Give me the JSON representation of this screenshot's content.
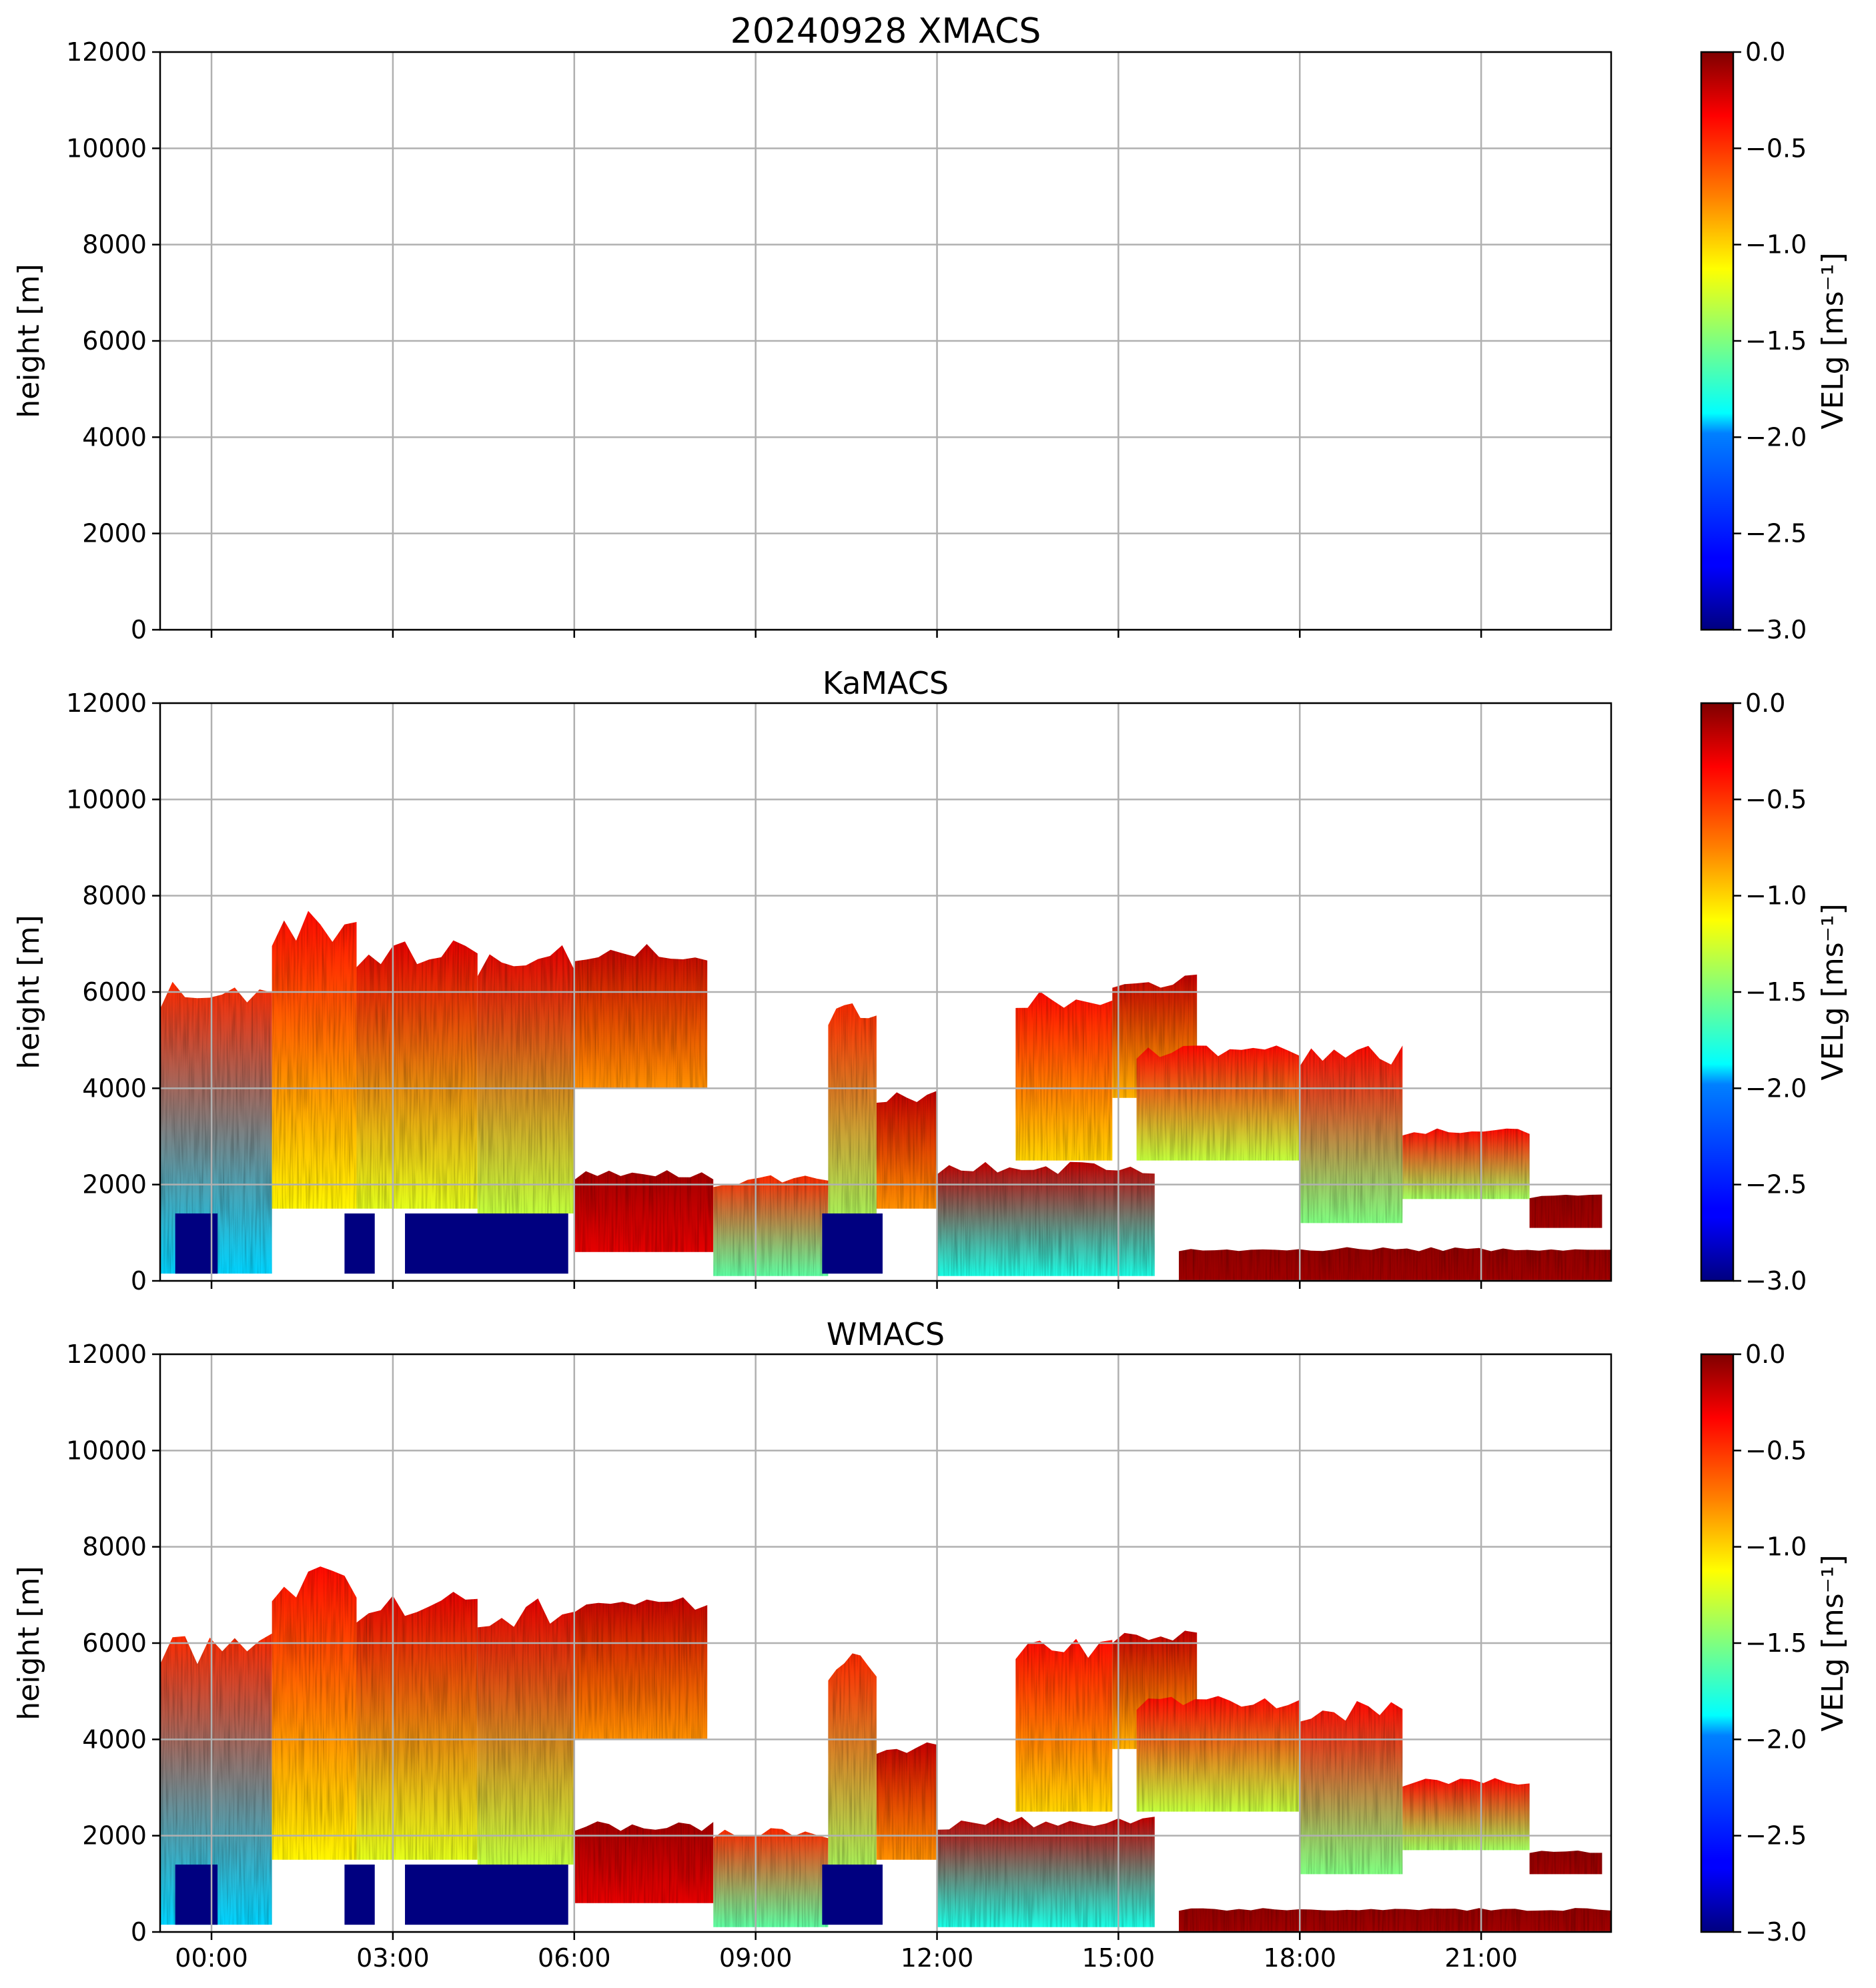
{
  "chart_data": [
    {
      "type": "heatmap",
      "title": "20240928 XMACS",
      "ylabel": "height [m]",
      "xlabel": "",
      "ylim": [
        0,
        12000
      ],
      "yticks": [
        0,
        2000,
        4000,
        6000,
        8000,
        10000,
        12000
      ],
      "xlim_hours": [
        -0.85,
        23.15
      ],
      "xticks_hours": [
        0,
        3,
        6,
        9,
        12,
        15,
        18,
        21
      ],
      "xtick_labels": [],
      "grid": true,
      "data": "none",
      "colorbar": {
        "label": "VELg [ms⁻¹]",
        "range": [
          -3.0,
          0.0
        ],
        "ticks": [
          0.0,
          -0.5,
          -1.0,
          -1.5,
          -2.0,
          -2.5,
          -3.0
        ],
        "tick_labels": [
          "0.0",
          "−0.5",
          "−1.0",
          "−1.5",
          "−2.0",
          "−2.5",
          "−3.0"
        ],
        "colormap": "jet"
      }
    },
    {
      "type": "heatmap",
      "title": "KaMACS",
      "ylabel": "height [m]",
      "xlabel": "",
      "ylim": [
        0,
        12000
      ],
      "yticks": [
        0,
        2000,
        4000,
        6000,
        8000,
        10000,
        12000
      ],
      "xlim_hours": [
        -0.85,
        23.15
      ],
      "xticks_hours": [
        0,
        3,
        6,
        9,
        12,
        15,
        18,
        21
      ],
      "xtick_labels": [],
      "grid": true,
      "cloud_regions": [
        {
          "t0": -0.85,
          "t1": 1.0,
          "base_m": 150,
          "top_m": 6400,
          "vel_top": -0.5,
          "vel_bottom": -2.0
        },
        {
          "t0": 1.0,
          "t1": 2.4,
          "base_m": 1500,
          "top_m": 7700,
          "vel_top": -0.4,
          "vel_bottom": -1.1
        },
        {
          "t0": 2.4,
          "t1": 4.4,
          "base_m": 1500,
          "top_m": 7200,
          "vel_top": -0.3,
          "vel_bottom": -1.2
        },
        {
          "t0": 4.4,
          "t1": 6.0,
          "base_m": 1400,
          "top_m": 7000,
          "vel_top": -0.3,
          "vel_bottom": -1.3
        },
        {
          "t0": 6.0,
          "t1": 8.2,
          "base_m": 4000,
          "top_m": 7000,
          "vel_top": -0.2,
          "vel_bottom": -0.8
        },
        {
          "t0": 6.0,
          "t1": 8.3,
          "base_m": 600,
          "top_m": 2300,
          "vel_top": -0.1,
          "vel_bottom": -0.3
        },
        {
          "t0": 8.3,
          "t1": 10.2,
          "base_m": 100,
          "top_m": 2200,
          "vel_top": -0.5,
          "vel_bottom": -1.6
        },
        {
          "t0": 10.2,
          "t1": 11.0,
          "base_m": 1000,
          "top_m": 5900,
          "vel_top": -0.5,
          "vel_bottom": -1.4
        },
        {
          "t0": 11.0,
          "t1": 12.0,
          "base_m": 1500,
          "top_m": 4000,
          "vel_top": -0.2,
          "vel_bottom": -0.8
        },
        {
          "t0": 12.0,
          "t1": 15.6,
          "base_m": 100,
          "top_m": 2500,
          "vel_top": -0.2,
          "vel_bottom": -1.8
        },
        {
          "t0": 13.3,
          "t1": 14.9,
          "base_m": 2500,
          "top_m": 6100,
          "vel_top": -0.4,
          "vel_bottom": -1.0
        },
        {
          "t0": 14.9,
          "t1": 16.3,
          "base_m": 3800,
          "top_m": 6400,
          "vel_top": -0.2,
          "vel_bottom": -0.9
        },
        {
          "t0": 15.3,
          "t1": 18.0,
          "base_m": 2500,
          "top_m": 4900,
          "vel_top": -0.4,
          "vel_bottom": -1.3
        },
        {
          "t0": 18.0,
          "t1": 19.7,
          "base_m": 1200,
          "top_m": 4900,
          "vel_top": -0.4,
          "vel_bottom": -1.5
        },
        {
          "t0": 19.7,
          "t1": 21.8,
          "base_m": 1700,
          "top_m": 3200,
          "vel_top": -0.4,
          "vel_bottom": -1.4
        },
        {
          "t0": 16.0,
          "t1": 23.15,
          "base_m": 0,
          "top_m": 700,
          "vel_top": -0.05,
          "vel_bottom": -0.1
        },
        {
          "t0": 21.8,
          "t1": 23.0,
          "base_m": 1100,
          "top_m": 1800,
          "vel_top": -0.05,
          "vel_bottom": -0.1
        }
      ],
      "precip_blocks": [
        {
          "t0": -0.6,
          "t1": 0.1,
          "base_m": 150,
          "top_m": 1400,
          "vel": -3.0
        },
        {
          "t0": 2.2,
          "t1": 2.7,
          "base_m": 150,
          "top_m": 1400,
          "vel": -3.0
        },
        {
          "t0": 3.2,
          "t1": 5.9,
          "base_m": 150,
          "top_m": 1400,
          "vel": -3.0
        },
        {
          "t0": 10.1,
          "t1": 11.1,
          "base_m": 150,
          "top_m": 1400,
          "vel": -3.0
        }
      ],
      "colorbar": {
        "label": "VELg [ms⁻¹]",
        "range": [
          -3.0,
          0.0
        ],
        "ticks": [
          0.0,
          -0.5,
          -1.0,
          -1.5,
          -2.0,
          -2.5,
          -3.0
        ],
        "tick_labels": [
          "0.0",
          "−0.5",
          "−1.0",
          "−1.5",
          "−2.0",
          "−2.5",
          "−3.0"
        ],
        "colormap": "jet"
      }
    },
    {
      "type": "heatmap",
      "title": "WMACS",
      "ylabel": "height [m]",
      "xlabel": "",
      "ylim": [
        0,
        12000
      ],
      "yticks": [
        0,
        2000,
        4000,
        6000,
        8000,
        10000,
        12000
      ],
      "xlim_hours": [
        -0.85,
        23.15
      ],
      "xticks_hours": [
        0,
        3,
        6,
        9,
        12,
        15,
        18,
        21
      ],
      "xtick_labels": [
        "00:00",
        "03:00",
        "06:00",
        "09:00",
        "12:00",
        "15:00",
        "18:00",
        "21:00"
      ],
      "grid": true,
      "cloud_regions": [
        {
          "t0": -0.85,
          "t1": 1.0,
          "base_m": 150,
          "top_m": 6300,
          "vel_top": -0.5,
          "vel_bottom": -2.0
        },
        {
          "t0": 1.0,
          "t1": 2.4,
          "base_m": 1500,
          "top_m": 7600,
          "vel_top": -0.4,
          "vel_bottom": -1.1
        },
        {
          "t0": 2.4,
          "t1": 4.4,
          "base_m": 1500,
          "top_m": 7100,
          "vel_top": -0.3,
          "vel_bottom": -1.2
        },
        {
          "t0": 4.4,
          "t1": 6.0,
          "base_m": 1400,
          "top_m": 7000,
          "vel_top": -0.3,
          "vel_bottom": -1.3
        },
        {
          "t0": 6.0,
          "t1": 8.2,
          "base_m": 4000,
          "top_m": 7000,
          "vel_top": -0.2,
          "vel_bottom": -0.8
        },
        {
          "t0": 6.0,
          "t1": 8.3,
          "base_m": 600,
          "top_m": 2300,
          "vel_top": -0.1,
          "vel_bottom": -0.3
        },
        {
          "t0": 8.3,
          "t1": 10.2,
          "base_m": 100,
          "top_m": 2200,
          "vel_top": -0.5,
          "vel_bottom": -1.6
        },
        {
          "t0": 10.2,
          "t1": 11.0,
          "base_m": 1000,
          "top_m": 5800,
          "vel_top": -0.5,
          "vel_bottom": -1.4
        },
        {
          "t0": 11.0,
          "t1": 12.0,
          "base_m": 1500,
          "top_m": 4000,
          "vel_top": -0.2,
          "vel_bottom": -0.8
        },
        {
          "t0": 12.0,
          "t1": 15.6,
          "base_m": 100,
          "top_m": 2400,
          "vel_top": -0.2,
          "vel_bottom": -1.8
        },
        {
          "t0": 13.3,
          "t1": 14.9,
          "base_m": 2500,
          "top_m": 6100,
          "vel_top": -0.4,
          "vel_bottom": -1.0
        },
        {
          "t0": 14.9,
          "t1": 16.3,
          "base_m": 3800,
          "top_m": 6300,
          "vel_top": -0.2,
          "vel_bottom": -0.9
        },
        {
          "t0": 15.3,
          "t1": 18.0,
          "base_m": 2500,
          "top_m": 4900,
          "vel_top": -0.4,
          "vel_bottom": -1.3
        },
        {
          "t0": 18.0,
          "t1": 19.7,
          "base_m": 1200,
          "top_m": 4800,
          "vel_top": -0.4,
          "vel_bottom": -1.5
        },
        {
          "t0": 19.7,
          "t1": 21.8,
          "base_m": 1700,
          "top_m": 3200,
          "vel_top": -0.4,
          "vel_bottom": -1.4
        },
        {
          "t0": 16.0,
          "t1": 23.15,
          "base_m": 0,
          "top_m": 500,
          "vel_top": -0.05,
          "vel_bottom": -0.1
        },
        {
          "t0": 21.8,
          "t1": 23.0,
          "base_m": 1200,
          "top_m": 1700,
          "vel_top": -0.05,
          "vel_bottom": -0.1
        }
      ],
      "precip_blocks": [
        {
          "t0": -0.6,
          "t1": 0.1,
          "base_m": 150,
          "top_m": 1400,
          "vel": -3.0
        },
        {
          "t0": 2.2,
          "t1": 2.7,
          "base_m": 150,
          "top_m": 1400,
          "vel": -3.0
        },
        {
          "t0": 3.2,
          "t1": 5.9,
          "base_m": 150,
          "top_m": 1400,
          "vel": -3.0
        },
        {
          "t0": 10.1,
          "t1": 11.1,
          "base_m": 150,
          "top_m": 1400,
          "vel": -3.0
        }
      ],
      "colorbar": {
        "label": "VELg [ms⁻¹]",
        "range": [
          -3.0,
          0.0
        ],
        "ticks": [
          0.0,
          -0.5,
          -1.0,
          -1.5,
          -2.0,
          -2.5,
          -3.0
        ],
        "tick_labels": [
          "0.0",
          "−0.5",
          "−1.0",
          "−1.5",
          "−2.0",
          "−2.5",
          "−3.0"
        ],
        "colormap": "jet"
      }
    }
  ]
}
